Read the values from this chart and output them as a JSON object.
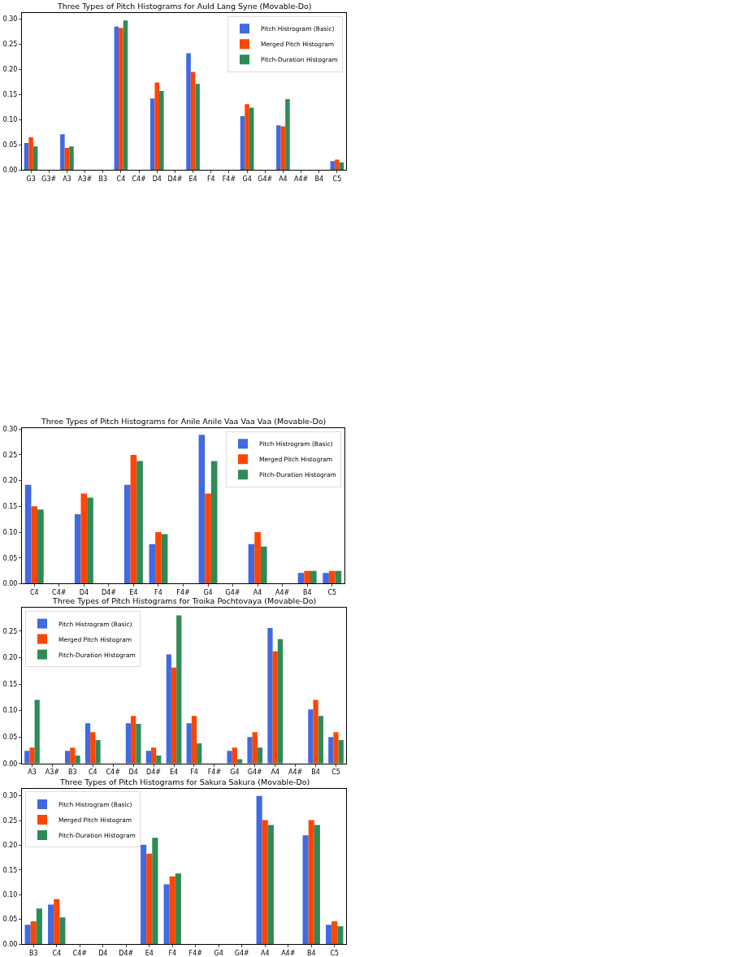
{
  "chart_data": [
    {
      "type": "bar",
      "title": "Three Types of Pitch Histograms for Auld Lang Syne (Movable-Do)",
      "categories": [
        "G3",
        "G3#",
        "A3",
        "A3#",
        "B3",
        "C4",
        "C4#",
        "D4",
        "D4#",
        "E4",
        "F4",
        "F4#",
        "G4",
        "G4#",
        "A4",
        "A4#",
        "B4",
        "C5"
      ],
      "series": [
        {
          "name": "Pitch Histrogram (Basic)",
          "color": "#4169e1",
          "values": [
            0.054,
            0,
            0.071,
            0,
            0,
            0.285,
            0,
            0.142,
            0,
            0.232,
            0,
            0,
            0.107,
            0,
            0.089,
            0,
            0,
            0.018
          ]
        },
        {
          "name": "Merged Pitch Histogram",
          "color": "#ff4500",
          "values": [
            0.065,
            0,
            0.044,
            0,
            0,
            0.282,
            0,
            0.174,
            0,
            0.195,
            0,
            0,
            0.131,
            0,
            0.087,
            0,
            0,
            0.021
          ]
        },
        {
          "name": "Pitch-Duration Histogram",
          "color": "#2e8b57",
          "values": [
            0.047,
            0,
            0.047,
            0,
            0,
            0.297,
            0,
            0.157,
            0,
            0.171,
            0,
            0,
            0.124,
            0,
            0.141,
            0,
            0,
            0.015
          ]
        }
      ],
      "ylim": [
        0,
        0.312
      ],
      "yticks": [
        {
          "value": 0,
          "label": "0.00"
        },
        {
          "value": 0.05,
          "label": "0.05"
        },
        {
          "value": 0.1,
          "label": "0.10"
        },
        {
          "value": 0.15,
          "label": "0.15"
        },
        {
          "value": 0.2,
          "label": "0.20"
        },
        {
          "value": 0.25,
          "label": "0.25"
        },
        {
          "value": 0.3,
          "label": "0.30"
        }
      ],
      "legend": "top right"
    },
    {
      "type": "bar",
      "title": "Three Types of Pitch Histograms for Anile Anile Vaa Vaa Vaa (Movable-Do)",
      "categories": [
        "C4",
        "C4#",
        "D4",
        "D4#",
        "E4",
        "F4",
        "F4#",
        "G4",
        "G4#",
        "A4",
        "A4#",
        "B4",
        "C5"
      ],
      "series": [
        {
          "name": "Pitch Histrogram (Basic)",
          "color": "#4169e1",
          "values": [
            0.192,
            0,
            0.135,
            0,
            0.192,
            0.077,
            0,
            0.289,
            0,
            0.077,
            0,
            0.021,
            0.021
          ]
        },
        {
          "name": "Merged Pitch Histogram",
          "color": "#ff4500",
          "values": [
            0.15,
            0,
            0.175,
            0,
            0.25,
            0.1,
            0,
            0.175,
            0,
            0.1,
            0,
            0.025,
            0.025
          ]
        },
        {
          "name": "Pitch-Duration Histogram",
          "color": "#2e8b57",
          "values": [
            0.144,
            0,
            0.167,
            0,
            0.238,
            0.096,
            0,
            0.238,
            0,
            0.072,
            0,
            0.025,
            0.025
          ]
        }
      ],
      "ylim": [
        0,
        0.302
      ],
      "yticks": [
        {
          "value": 0,
          "label": "0.00"
        },
        {
          "value": 0.05,
          "label": "0.05"
        },
        {
          "value": 0.1,
          "label": "0.10"
        },
        {
          "value": 0.15,
          "label": "0.15"
        },
        {
          "value": 0.2,
          "label": "0.20"
        },
        {
          "value": 0.25,
          "label": "0.25"
        },
        {
          "value": 0.3,
          "label": "0.30"
        }
      ],
      "legend": "top right"
    },
    {
      "type": "bar",
      "title": "Three Types of Pitch Histograms for Troika Pochtovaya (Movable-Do)",
      "categories": [
        "A3",
        "A3#",
        "B3",
        "C4",
        "C4#",
        "D4",
        "D4#",
        "E4",
        "F4",
        "F4#",
        "G4",
        "G4#",
        "A4",
        "A4#",
        "B4",
        "C5"
      ],
      "series": [
        {
          "name": "Pitch Histrogram (Basic)",
          "color": "#4169e1",
          "values": [
            0.024,
            0,
            0.024,
            0.076,
            0,
            0.076,
            0.024,
            0.206,
            0.076,
            0,
            0.024,
            0.05,
            0.256,
            0,
            0.102,
            0.05
          ]
        },
        {
          "name": "Merged Pitch Histogram",
          "color": "#ff4500",
          "values": [
            0.03,
            0,
            0.03,
            0.059,
            0,
            0.09,
            0.03,
            0.181,
            0.09,
            0,
            0.03,
            0.059,
            0.212,
            0,
            0.12,
            0.059
          ]
        },
        {
          "name": "Pitch-Duration Histogram",
          "color": "#2e8b57",
          "values": [
            0.12,
            0,
            0.015,
            0.044,
            0,
            0.075,
            0.015,
            0.28,
            0.038,
            0,
            0.008,
            0.03,
            0.235,
            0,
            0.09,
            0.044
          ]
        }
      ],
      "ylim": [
        0,
        0.294
      ],
      "yticks": [
        {
          "value": 0,
          "label": "0.00"
        },
        {
          "value": 0.05,
          "label": "0.05"
        },
        {
          "value": 0.1,
          "label": "0.10"
        },
        {
          "value": 0.15,
          "label": "0.15"
        },
        {
          "value": 0.2,
          "label": "0.20"
        },
        {
          "value": 0.25,
          "label": "0.25"
        }
      ],
      "legend": "top left"
    },
    {
      "type": "bar",
      "title": "Three Types of Pitch Histograms for Sakura Sakura (Movable-Do)",
      "categories": [
        "B3",
        "C4",
        "C4#",
        "D4",
        "D4#",
        "E4",
        "F4",
        "F4#",
        "G4",
        "G4#",
        "A4",
        "A4#",
        "B4",
        "C5"
      ],
      "series": [
        {
          "name": "Pitch Histrogram (Basic)",
          "color": "#4169e1",
          "values": [
            0.039,
            0.08,
            0,
            0,
            0,
            0.201,
            0.121,
            0,
            0,
            0,
            0.3,
            0,
            0.22,
            0.039
          ]
        },
        {
          "name": "Merged Pitch Histogram",
          "color": "#ff4500",
          "values": [
            0.046,
            0.091,
            0,
            0,
            0,
            0.183,
            0.137,
            0,
            0,
            0,
            0.251,
            0,
            0.251,
            0.046
          ]
        },
        {
          "name": "Pitch-Duration Histogram",
          "color": "#2e8b57",
          "values": [
            0.072,
            0.054,
            0,
            0,
            0,
            0.215,
            0.143,
            0,
            0,
            0,
            0.241,
            0,
            0.241,
            0.036
          ]
        }
      ],
      "ylim": [
        0,
        0.315
      ],
      "yticks": [
        {
          "value": 0,
          "label": "0.00"
        },
        {
          "value": 0.05,
          "label": "0.05"
        },
        {
          "value": 0.1,
          "label": "0.10"
        },
        {
          "value": 0.15,
          "label": "0.15"
        },
        {
          "value": 0.2,
          "label": "0.20"
        },
        {
          "value": 0.25,
          "label": "0.25"
        },
        {
          "value": 0.3,
          "label": "0.30"
        }
      ],
      "legend": "top left"
    }
  ]
}
